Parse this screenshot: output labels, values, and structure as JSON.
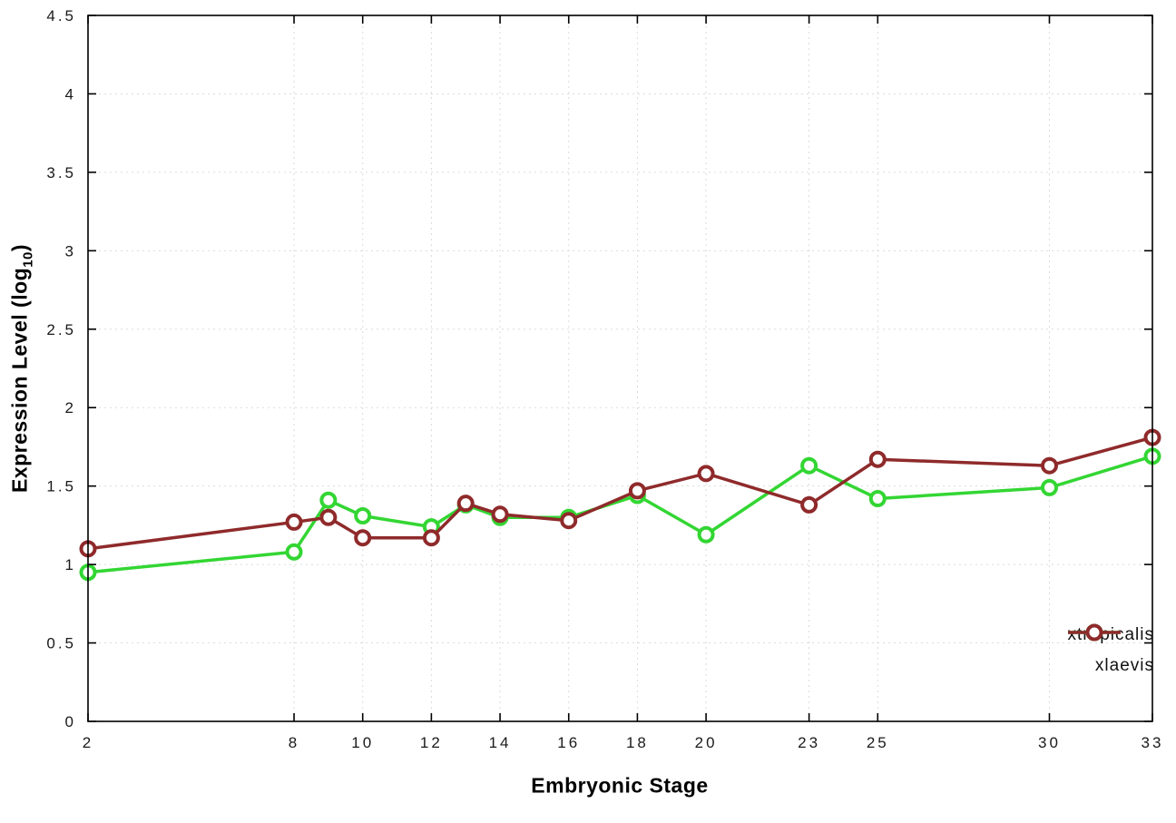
{
  "page": {
    "background": "#ffffff"
  },
  "labels": {
    "ylabel_main": "Expression Level (log",
    "ylabel_sub": "10",
    "ylabel_close": ")"
  },
  "chart_data": {
    "type": "line",
    "title": "",
    "xlabel": "Embryonic Stage",
    "ylabel": "Expression Level (log10)",
    "x": [
      2,
      8,
      9,
      10,
      12,
      13,
      14,
      16,
      18,
      20,
      23,
      25,
      30,
      33
    ],
    "xtick_labels": [
      2,
      8,
      10,
      12,
      14,
      16,
      18,
      20,
      23,
      25,
      30,
      33
    ],
    "xlim": [
      2,
      33
    ],
    "ylim": [
      0,
      4.5
    ],
    "yticks": [
      0,
      0.5,
      1,
      1.5,
      2,
      2.5,
      3,
      3.5,
      4,
      4.5
    ],
    "grid": true,
    "grid_color": "#d8ddd8",
    "axis_color": "#000000",
    "legend_position": "bottom-right-inside",
    "series": [
      {
        "name": "xtropicalis",
        "color": "#33d633",
        "marker": "open-circle",
        "values": [
          0.95,
          1.08,
          1.41,
          1.31,
          1.24,
          1.38,
          1.3,
          1.3,
          1.44,
          1.19,
          1.63,
          1.42,
          1.49,
          1.69
        ]
      },
      {
        "name": "xlaevis",
        "color": "#8f2a2b",
        "marker": "open-circle",
        "values": [
          1.1,
          1.27,
          1.3,
          1.17,
          1.17,
          1.39,
          1.32,
          1.28,
          1.47,
          1.58,
          1.38,
          1.67,
          1.63,
          1.81
        ]
      }
    ]
  }
}
